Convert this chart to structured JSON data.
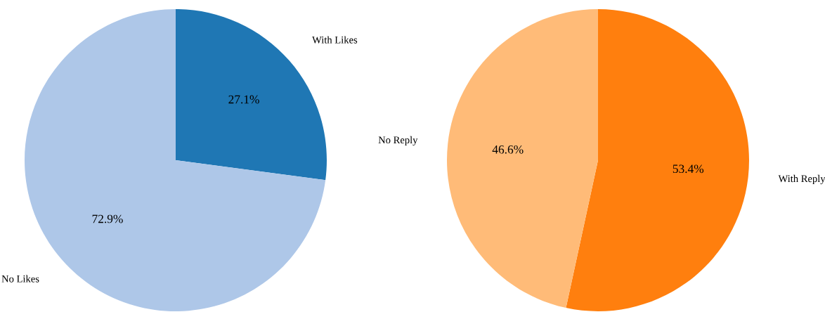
{
  "chart_data": [
    {
      "type": "pie",
      "categories": [
        "With Likes",
        "No Likes"
      ],
      "values": [
        27.1,
        72.9
      ],
      "colors": [
        "#1f77b4",
        "#aec7e8"
      ],
      "value_labels": [
        "27.1%",
        "72.9%"
      ]
    },
    {
      "type": "pie",
      "categories": [
        "With Reply",
        "No Reply"
      ],
      "values": [
        53.4,
        46.6
      ],
      "colors": [
        "#ff7f0e",
        "#ffbb78"
      ],
      "value_labels": [
        "53.4%",
        "46.6%"
      ]
    }
  ]
}
